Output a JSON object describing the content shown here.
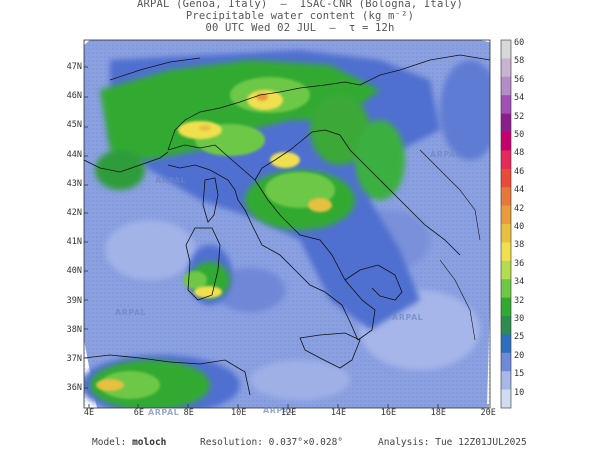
{
  "header": {
    "line1": "ARPAL (Genoa, Italy)  —  ISAC-CNR (Bologna, Italy)",
    "line2": "Precipitable water content (kg m⁻²)",
    "line3": "00 UTC Wed 02 JUL  —  τ = 12h"
  },
  "map": {
    "lat_labels": [
      "47N",
      "46N",
      "45N",
      "44N",
      "43N",
      "42N",
      "41N",
      "40N",
      "39N",
      "38N",
      "37N",
      "36N"
    ],
    "lon_labels": [
      "4E",
      "6E",
      "8E",
      "10E",
      "12E",
      "14E",
      "16E",
      "18E",
      "20E"
    ],
    "watermark": "ARPAL"
  },
  "colorbar": {
    "labels": [
      "60",
      "58",
      "56",
      "54",
      "52",
      "50",
      "48",
      "46",
      "44",
      "42",
      "40",
      "38",
      "36",
      "34",
      "32",
      "30",
      "25",
      "20",
      "15",
      "10"
    ],
    "colors": [
      "#d8d8d8",
      "#c8b4d2",
      "#b48cc8",
      "#a050b4",
      "#8c1e8c",
      "#c8006e",
      "#e6285a",
      "#e84b37",
      "#e8773a",
      "#e89b3c",
      "#e8c040",
      "#f0e050",
      "#b4dc50",
      "#6ec846",
      "#32aa32",
      "#2d8c4e",
      "#2c6fc0",
      "#6f8ad8",
      "#a8b8e6",
      "#d2dcf0"
    ]
  },
  "footer": {
    "model_label": "Model:",
    "model_value": "moloch",
    "resolution_label": "Resolution:",
    "resolution_value": "0.037°×0.028°",
    "analysis_label": "Analysis:",
    "analysis_value": "Tue 12Z01JUL2025"
  }
}
